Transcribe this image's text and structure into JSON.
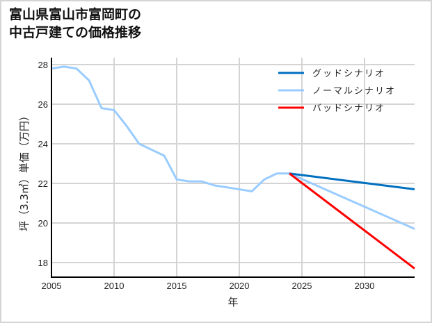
{
  "title": "富山県富山市富岡町の\n中古戸建ての価格推移",
  "chart_data": {
    "type": "line",
    "title": "富山県富山市富岡町の中古戸建ての価格推移",
    "xlabel": "年",
    "ylabel": "坪（3.3㎡）単価（万円）",
    "xlim": [
      2005,
      2034
    ],
    "ylim": [
      17.3,
      28.5
    ],
    "xticks": [
      2005,
      2010,
      2015,
      2020,
      2025,
      2030
    ],
    "yticks": [
      18,
      20,
      22,
      24,
      26,
      28
    ],
    "grid": true,
    "legend_position": "upper right",
    "series": [
      {
        "name": "ノーマルシナリオ",
        "color": "#99ccff",
        "x": [
          2005,
          2006,
          2007,
          2008,
          2009,
          2010,
          2011,
          2012,
          2013,
          2014,
          2015,
          2016,
          2017,
          2018,
          2019,
          2020,
          2021,
          2022,
          2023,
          2024,
          2034
        ],
        "values": [
          27.8,
          27.9,
          27.8,
          27.2,
          25.8,
          25.7,
          24.9,
          24.0,
          23.7,
          23.4,
          22.2,
          22.1,
          22.1,
          21.9,
          21.8,
          21.7,
          21.6,
          22.2,
          22.5,
          22.5,
          19.7
        ]
      },
      {
        "name": "グッドシナリオ",
        "color": "#0070c0",
        "x": [
          2024,
          2034
        ],
        "values": [
          22.5,
          21.7
        ]
      },
      {
        "name": "バッドシナリオ",
        "color": "#ff0000",
        "x": [
          2024,
          2034
        ],
        "values": [
          22.5,
          17.7
        ]
      }
    ]
  },
  "legend": [
    {
      "label": "グッドシナリオ",
      "color": "#0070c0"
    },
    {
      "label": "ノーマルシナリオ",
      "color": "#99ccff"
    },
    {
      "label": "バッドシナリオ",
      "color": "#ff0000"
    }
  ]
}
